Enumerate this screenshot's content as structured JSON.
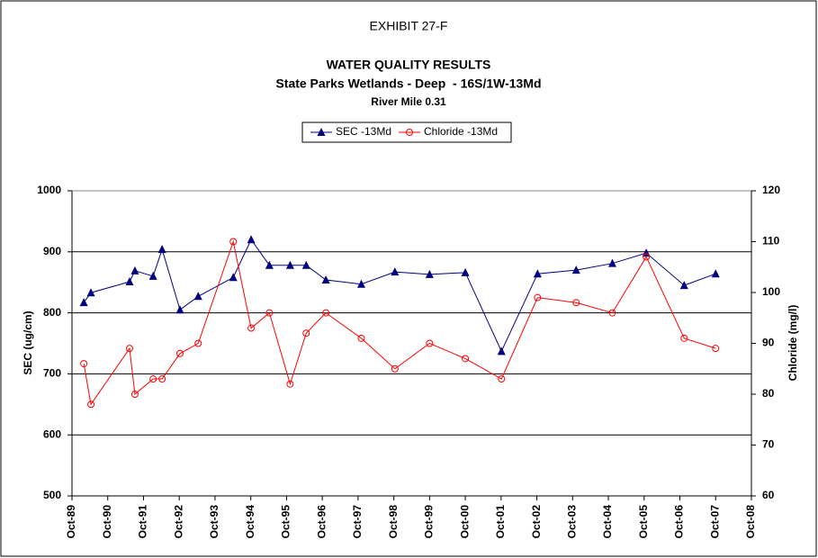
{
  "chart_data": {
    "type": "line",
    "title": "EXHIBIT 27-F",
    "subtitle": [
      "WATER QUALITY RESULTS",
      "State Parks Wetlands - Deep  - 16S/1W-13Md",
      "River Mile 0.31"
    ],
    "y_label": "SEC (ug/cm)",
    "y2_label": "Chloride (mg/l)",
    "x": [
      1990.08,
      1990.28,
      1991.36,
      1991.51,
      1992.02,
      1992.27,
      1992.77,
      1993.28,
      1994.26,
      1994.76,
      1995.27,
      1995.85,
      1996.3,
      1996.85,
      1997.84,
      1998.78,
      1999.75,
      2000.75,
      2001.76,
      2002.77,
      2003.85,
      2004.86,
      2005.81,
      2006.87,
      2007.75
    ],
    "series": [
      {
        "name": "SEC -13Md",
        "color": "#000080",
        "marker": "triangle",
        "values": [
          817,
          833,
          851,
          869,
          860,
          904,
          805,
          827,
          858,
          920,
          878,
          878,
          878,
          854,
          847,
          867,
          863,
          866,
          737,
          864,
          870,
          881,
          898,
          845,
          864
        ]
      },
      {
        "name": "Chloride -13Md",
        "color": "#ff0000",
        "marker": "circle",
        "axis": "y2",
        "values": [
          86,
          78,
          89,
          80,
          83,
          83,
          88,
          90,
          110,
          93,
          96,
          82,
          92,
          96,
          91,
          85,
          90,
          87,
          83,
          99,
          98,
          96,
          107,
          91,
          89
        ]
      }
    ],
    "xlim": [
      1989.75,
      2008.75
    ],
    "xticks": [
      {
        "value": 1989.75,
        "label": "Oct-89"
      },
      {
        "value": 1990.75,
        "label": "Oct-90"
      },
      {
        "value": 1991.75,
        "label": "Oct-91"
      },
      {
        "value": 1992.75,
        "label": "Oct-92"
      },
      {
        "value": 1993.75,
        "label": "Oct-93"
      },
      {
        "value": 1994.75,
        "label": "Oct-94"
      },
      {
        "value": 1995.75,
        "label": "Oct-95"
      },
      {
        "value": 1996.75,
        "label": "Oct-96"
      },
      {
        "value": 1997.75,
        "label": "Oct-97"
      },
      {
        "value": 1998.75,
        "label": "Oct-98"
      },
      {
        "value": 1999.75,
        "label": "Oct-99"
      },
      {
        "value": 2000.75,
        "label": "Oct-00"
      },
      {
        "value": 2001.75,
        "label": "Oct-01"
      },
      {
        "value": 2002.75,
        "label": "Oct-02"
      },
      {
        "value": 2003.75,
        "label": "Oct-03"
      },
      {
        "value": 2004.75,
        "label": "Oct-04"
      },
      {
        "value": 2005.75,
        "label": "Oct-05"
      },
      {
        "value": 2006.75,
        "label": "Oct-06"
      },
      {
        "value": 2007.75,
        "label": "Oct-07"
      },
      {
        "value": 2008.75,
        "label": "Oct-08"
      }
    ],
    "ylim": [
      500,
      1000
    ],
    "yticks": [
      500,
      600,
      700,
      800,
      900,
      1000
    ],
    "y2lim": [
      60,
      120
    ],
    "y2ticks": [
      60,
      70,
      80,
      90,
      100,
      110,
      120
    ],
    "grid": true,
    "legend": "top"
  }
}
